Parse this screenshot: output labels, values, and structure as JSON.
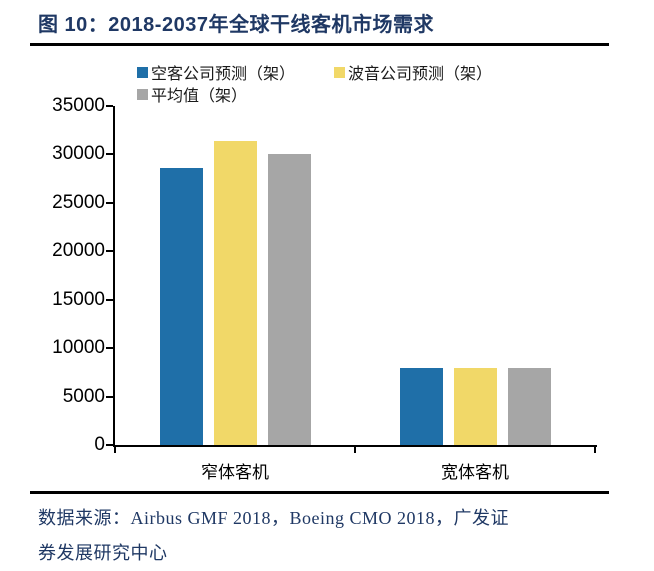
{
  "figure": {
    "title": "图 10：2018-2037年全球干线客机市场需求"
  },
  "chart_data": {
    "type": "bar",
    "title": "2018-2037年全球干线客机市场需求",
    "categories": [
      "窄体客机",
      "宽体客机"
    ],
    "category_slugs": [
      "narrow-body",
      "wide-body"
    ],
    "series": [
      {
        "name": "空客公司预测（架）",
        "slug": "airbus-forecast",
        "color": "#1F6FA8",
        "values": [
          28600,
          7900
        ]
      },
      {
        "name": "波音公司预测（架）",
        "slug": "boeing-forecast",
        "color": "#F1D868",
        "values": [
          31400,
          8000
        ]
      },
      {
        "name": "平均值（架）",
        "slug": "average",
        "color": "#A6A6A6",
        "values": [
          30000,
          7950
        ]
      }
    ],
    "xlabel": "",
    "ylabel": "",
    "ylim": [
      0,
      35000
    ],
    "yticks": [
      0,
      5000,
      10000,
      15000,
      20000,
      25000,
      30000,
      35000
    ],
    "legend_position": "top",
    "grid": false
  },
  "source": {
    "lines": [
      "数据来源：Airbus GMF 2018，Boeing CMO 2018，广发证",
      "券发展研究中心"
    ]
  },
  "colors": {
    "title_text": "#1F3864",
    "source_text": "#1F3864",
    "rule": "#000000",
    "axis": "#000000",
    "bar_blue": "#1F6FA8",
    "bar_yellow": "#F1D868",
    "bar_gray": "#A6A6A6"
  }
}
